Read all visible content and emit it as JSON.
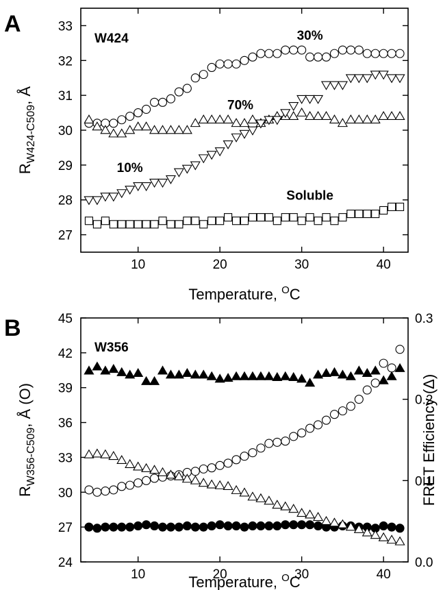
{
  "chart_data": [
    {
      "type": "scatter",
      "panel": "A",
      "annotation": "W424",
      "xlabel": "Temperature, ",
      "xlabel_sup": "O",
      "xlabel_suffix": "C",
      "ylabel": "R",
      "ylabel_sub": "W424-C509",
      "ylabel_suffix": ", Å",
      "xlim": [
        3,
        43
      ],
      "ylim": [
        26.5,
        33.5
      ],
      "xticks": [
        10,
        20,
        30,
        40
      ],
      "yticks": [
        27,
        28,
        29,
        30,
        31,
        32,
        33
      ],
      "series": [
        {
          "name": "30%",
          "marker": "circle-open",
          "x": [
            4,
            5,
            6,
            7,
            8,
            9,
            10,
            11,
            12,
            13,
            14,
            15,
            16,
            17,
            18,
            19,
            20,
            21,
            22,
            23,
            24,
            25,
            26,
            27,
            28,
            29,
            30,
            31,
            32,
            33,
            34,
            35,
            36,
            37,
            38,
            39,
            40,
            41,
            42
          ],
          "y": [
            30.2,
            30.2,
            30.2,
            30.2,
            30.3,
            30.4,
            30.5,
            30.6,
            30.8,
            30.8,
            30.9,
            31.1,
            31.2,
            31.5,
            31.6,
            31.8,
            31.9,
            31.9,
            31.9,
            32.0,
            32.1,
            32.2,
            32.2,
            32.2,
            32.3,
            32.3,
            32.3,
            32.1,
            32.1,
            32.1,
            32.2,
            32.3,
            32.3,
            32.3,
            32.2,
            32.2,
            32.2,
            32.2,
            32.2
          ]
        },
        {
          "name": "70%",
          "marker": "triangle-up-open",
          "x": [
            4,
            5,
            6,
            7,
            8,
            9,
            10,
            11,
            12,
            13,
            14,
            15,
            16,
            17,
            18,
            19,
            20,
            21,
            22,
            23,
            24,
            25,
            26,
            27,
            28,
            29,
            30,
            31,
            32,
            33,
            34,
            35,
            36,
            37,
            38,
            39,
            40,
            41,
            42
          ],
          "y": [
            30.3,
            30.1,
            30.0,
            29.9,
            29.9,
            30.0,
            30.1,
            30.1,
            30.0,
            30.0,
            30.0,
            30.0,
            30.0,
            30.2,
            30.3,
            30.3,
            30.3,
            30.3,
            30.2,
            30.2,
            30.3,
            30.2,
            30.3,
            30.4,
            30.4,
            30.4,
            30.5,
            30.4,
            30.4,
            30.4,
            30.3,
            30.2,
            30.3,
            30.3,
            30.3,
            30.3,
            30.4,
            30.4,
            30.4
          ]
        },
        {
          "name": "10%",
          "marker": "triangle-down-open",
          "x": [
            4,
            5,
            6,
            7,
            8,
            9,
            10,
            11,
            12,
            13,
            14,
            15,
            16,
            17,
            18,
            19,
            20,
            21,
            22,
            23,
            24,
            25,
            26,
            27,
            28,
            29,
            30,
            31,
            32,
            33,
            34,
            35,
            36,
            37,
            38,
            39,
            40,
            41,
            42
          ],
          "y": [
            28.0,
            28.0,
            28.1,
            28.1,
            28.2,
            28.3,
            28.4,
            28.4,
            28.5,
            28.5,
            28.6,
            28.8,
            28.9,
            29.0,
            29.2,
            29.3,
            29.4,
            29.6,
            29.8,
            29.9,
            30.0,
            30.2,
            30.3,
            30.3,
            30.5,
            30.7,
            30.9,
            30.9,
            30.9,
            31.3,
            31.3,
            31.3,
            31.5,
            31.5,
            31.5,
            31.6,
            31.6,
            31.5,
            31.5
          ]
        },
        {
          "name": "Soluble",
          "marker": "square-open",
          "x": [
            4,
            5,
            6,
            7,
            8,
            9,
            10,
            11,
            12,
            13,
            14,
            15,
            16,
            17,
            18,
            19,
            20,
            21,
            22,
            23,
            24,
            25,
            26,
            27,
            28,
            29,
            30,
            31,
            32,
            33,
            34,
            35,
            36,
            37,
            38,
            39,
            40,
            41,
            42
          ],
          "y": [
            27.4,
            27.3,
            27.4,
            27.3,
            27.3,
            27.3,
            27.3,
            27.3,
            27.3,
            27.4,
            27.3,
            27.3,
            27.4,
            27.4,
            27.3,
            27.4,
            27.4,
            27.5,
            27.4,
            27.4,
            27.5,
            27.5,
            27.5,
            27.4,
            27.5,
            27.5,
            27.4,
            27.5,
            27.4,
            27.5,
            27.4,
            27.5,
            27.6,
            27.6,
            27.6,
            27.6,
            27.7,
            27.8,
            27.8
          ]
        }
      ],
      "labels": [
        {
          "text": "30%",
          "x": 31,
          "y": 32.6
        },
        {
          "text": "70%",
          "x": 22.5,
          "y": 30.6
        },
        {
          "text": "10%",
          "x": 9,
          "y": 28.8
        },
        {
          "text": "Soluble",
          "x": 31,
          "y": 28.0
        }
      ]
    },
    {
      "type": "scatter",
      "panel": "B",
      "annotation": "W356",
      "xlabel": "Temperature, ",
      "xlabel_sup": "O",
      "xlabel_suffix": "C",
      "ylabel": "R",
      "ylabel_sub": "W356-C509",
      "ylabel_suffix": ", Å (O)",
      "y2label": "FRET Efficiency  (Δ)",
      "xlim": [
        3,
        43
      ],
      "ylim": [
        24,
        45
      ],
      "y2lim": [
        0.0,
        0.3
      ],
      "xticks": [
        10,
        20,
        30,
        40
      ],
      "yticks": [
        24,
        27,
        30,
        33,
        36,
        39,
        42,
        45
      ],
      "yticklabels": [
        "24",
        "27",
        "30",
        "33",
        "36",
        "39",
        "42",
        "45"
      ],
      "y2ticks": [
        0.0,
        0.1,
        0.2,
        0.3
      ],
      "y2ticklabels": [
        "0.0",
        "0.1",
        "0.2",
        "0.3"
      ],
      "series": [
        {
          "name": "",
          "axis": "left",
          "marker": "circle-open",
          "x": [
            4,
            5,
            6,
            7,
            8,
            9,
            10,
            11,
            12,
            13,
            14,
            15,
            16,
            17,
            18,
            19,
            20,
            21,
            22,
            23,
            24,
            25,
            26,
            27,
            28,
            29,
            30,
            31,
            32,
            33,
            34,
            35,
            36,
            37,
            38,
            39,
            40,
            41,
            42
          ],
          "y": [
            30.2,
            30.0,
            30.1,
            30.2,
            30.5,
            30.6,
            30.8,
            31.0,
            31.2,
            31.3,
            31.4,
            31.5,
            31.7,
            31.8,
            32.0,
            32.1,
            32.3,
            32.5,
            32.8,
            33.1,
            33.4,
            33.8,
            34.2,
            34.3,
            34.4,
            34.8,
            35.1,
            35.5,
            35.8,
            36.2,
            36.7,
            37.0,
            37.4,
            38.0,
            38.8,
            39.4,
            41.1,
            40.7,
            42.3
          ]
        },
        {
          "name": "",
          "axis": "left",
          "marker": "circle-filled",
          "x": [
            4,
            5,
            6,
            7,
            8,
            9,
            10,
            11,
            12,
            13,
            14,
            15,
            16,
            17,
            18,
            19,
            20,
            21,
            22,
            23,
            24,
            25,
            26,
            27,
            28,
            29,
            30,
            31,
            32,
            33,
            34,
            35,
            36,
            37,
            38,
            39,
            40,
            41,
            42
          ],
          "y": [
            27.0,
            26.9,
            27.0,
            27.0,
            27.0,
            27.0,
            27.1,
            27.2,
            27.1,
            27.0,
            27.0,
            27.0,
            27.1,
            27.0,
            27.0,
            27.1,
            27.2,
            27.1,
            27.1,
            27.0,
            27.1,
            27.1,
            27.1,
            27.1,
            27.2,
            27.2,
            27.2,
            27.2,
            27.1,
            27.0,
            27.0,
            27.1,
            27.1,
            27.0,
            27.0,
            26.9,
            27.1,
            27.0,
            26.9
          ]
        },
        {
          "name": "",
          "axis": "right",
          "marker": "triangle-up-filled",
          "x": [
            4,
            5,
            6,
            7,
            8,
            9,
            10,
            11,
            12,
            13,
            14,
            15,
            16,
            17,
            18,
            19,
            20,
            21,
            22,
            23,
            24,
            25,
            26,
            27,
            28,
            29,
            30,
            31,
            32,
            33,
            34,
            35,
            36,
            37,
            38,
            39,
            40,
            41,
            42
          ],
          "y": [
            0.235,
            0.24,
            0.235,
            0.237,
            0.233,
            0.23,
            0.232,
            0.222,
            0.222,
            0.235,
            0.23,
            0.23,
            0.232,
            0.23,
            0.23,
            0.228,
            0.225,
            0.226,
            0.228,
            0.228,
            0.228,
            0.228,
            0.228,
            0.227,
            0.228,
            0.227,
            0.225,
            0.22,
            0.23,
            0.232,
            0.233,
            0.23,
            0.228,
            0.235,
            0.232,
            0.235,
            0.223,
            0.228,
            0.238
          ]
        },
        {
          "name": "",
          "axis": "right",
          "marker": "triangle-up-open",
          "x": [
            4,
            5,
            6,
            7,
            8,
            9,
            10,
            11,
            12,
            13,
            14,
            15,
            16,
            17,
            18,
            19,
            20,
            21,
            22,
            23,
            24,
            25,
            26,
            27,
            28,
            29,
            30,
            31,
            32,
            33,
            34,
            35,
            36,
            37,
            38,
            39,
            40,
            41,
            42
          ],
          "y": [
            0.132,
            0.133,
            0.132,
            0.13,
            0.125,
            0.12,
            0.117,
            0.115,
            0.113,
            0.11,
            0.107,
            0.105,
            0.102,
            0.1,
            0.097,
            0.095,
            0.094,
            0.093,
            0.088,
            0.085,
            0.08,
            0.078,
            0.075,
            0.07,
            0.068,
            0.065,
            0.06,
            0.058,
            0.055,
            0.05,
            0.048,
            0.046,
            0.043,
            0.04,
            0.036,
            0.033,
            0.03,
            0.027,
            0.025
          ]
        }
      ],
      "labels": []
    }
  ]
}
